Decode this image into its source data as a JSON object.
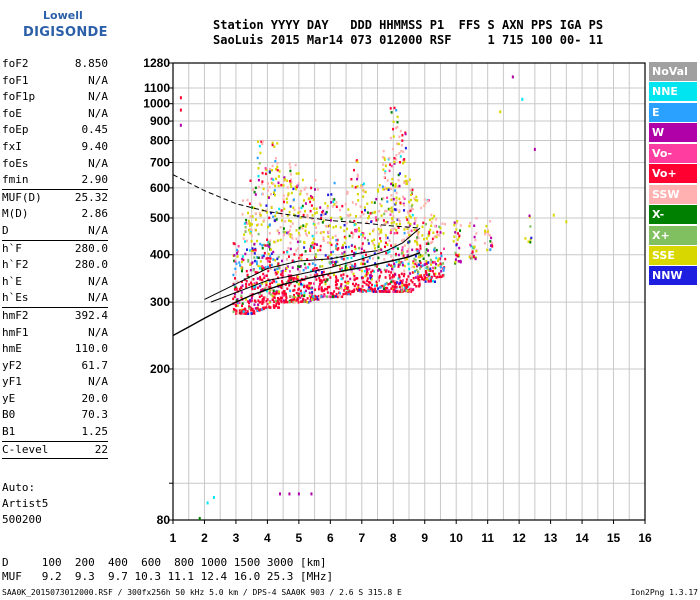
{
  "logo": {
    "line1": "Lowell",
    "line2": "DIGISONDE"
  },
  "header": {
    "line1": "Station YYYY DAY   DDD HHMMSS P1  FFS S AXN PPS IGA PS",
    "line2": "SaoLuis 2015 Mar14 073 012000 RSF     1 715 100 00- 11"
  },
  "params": [
    {
      "label": "foF2",
      "value": "8.850"
    },
    {
      "label": "foF1",
      "value": "N/A"
    },
    {
      "label": "foF1p",
      "value": "N/A"
    },
    {
      "label": "foE",
      "value": "N/A"
    },
    {
      "label": "foEp",
      "value": "0.45"
    },
    {
      "label": "fxI",
      "value": "9.40"
    },
    {
      "label": "foEs",
      "value": "N/A"
    },
    {
      "label": "fmin",
      "value": "2.90"
    },
    {
      "sep": true
    },
    {
      "label": "MUF(D)",
      "value": "25.32"
    },
    {
      "label": "M(D)",
      "value": "2.86"
    },
    {
      "label": "D",
      "value": "N/A"
    },
    {
      "sep": true
    },
    {
      "label": "h`F",
      "value": "280.0"
    },
    {
      "label": "h`F2",
      "value": "280.0"
    },
    {
      "label": "h`E",
      "value": "N/A"
    },
    {
      "label": "h`Es",
      "value": "N/A"
    },
    {
      "sep": true
    },
    {
      "label": "hmF2",
      "value": "392.4"
    },
    {
      "label": "hmF1",
      "value": "N/A"
    },
    {
      "label": "hmE",
      "value": "110.0"
    },
    {
      "label": "yF2",
      "value": "61.7"
    },
    {
      "label": "yF1",
      "value": "N/A"
    },
    {
      "label": "yE",
      "value": "20.0"
    },
    {
      "label": "B0",
      "value": "70.3"
    },
    {
      "label": "B1",
      "value": "1.25"
    },
    {
      "sep": true
    },
    {
      "label": "C-level",
      "value": "22"
    },
    {
      "sep": true
    }
  ],
  "auto": {
    "line1": "Auto:",
    "line2": "Artist5",
    "line3": "500200"
  },
  "legend": [
    {
      "label": "NoVal",
      "color": "#a0a0a0"
    },
    {
      "label": "NNE",
      "color": "#00e5f0"
    },
    {
      "label": "E",
      "color": "#2aa0ff"
    },
    {
      "label": "W",
      "color": "#b000a8"
    },
    {
      "label": "Vo-",
      "color": "#ff3ca0"
    },
    {
      "label": "Vo+",
      "color": "#ff0030"
    },
    {
      "label": "SSW",
      "color": "#ffb0b0"
    },
    {
      "label": "X-",
      "color": "#008000"
    },
    {
      "label": "X+",
      "color": "#80c060"
    },
    {
      "label": "SSE",
      "color": "#d8d800"
    },
    {
      "label": "NNW",
      "color": "#1e1ee0"
    }
  ],
  "muf_table": {
    "line1": "D     100  200  400  600  800 1000 1500 3000 [km]",
    "line2": "MUF   9.2  9.3  9.7 10.3 11.1 12.4 16.0 25.3 [MHz]"
  },
  "footer": {
    "left": "SAA0K_2015073012000.RSF / 300fx256h 50 kHz 5.0 km / DPS-4 SAA0K 903 / 2.6 S 315.8 E",
    "right": "Ion2Png 1.3.17"
  },
  "chart_data": {
    "type": "scatter",
    "title": "",
    "xlabel": "",
    "ylabel": "",
    "xlim": [
      1,
      16
    ],
    "ylim": [
      80,
      1280
    ],
    "y_scale": "log",
    "x_ticks": [
      1,
      2,
      3,
      4,
      5,
      6,
      7,
      8,
      9,
      10,
      11,
      12,
      13,
      14,
      15,
      16
    ],
    "y_ticks": [
      80,
      100,
      200,
      300,
      400,
      500,
      600,
      700,
      800,
      900,
      1000,
      1100,
      1280
    ],
    "y_tick_labels": [
      "80",
      "",
      "200",
      "300",
      "400",
      "500",
      "600",
      "700",
      "800",
      "900",
      "1000",
      "1100",
      "1280"
    ],
    "grid": true,
    "echo_columns": [
      {
        "x": 3.0,
        "ymin": 280,
        "ymax": 430,
        "n": 50
      },
      {
        "x": 3.25,
        "ymin": 280,
        "ymax": 560,
        "n": 70
      },
      {
        "x": 3.5,
        "ymin": 280,
        "ymax": 680,
        "n": 90
      },
      {
        "x": 3.75,
        "ymin": 285,
        "ymax": 800,
        "n": 100
      },
      {
        "x": 4.0,
        "ymin": 290,
        "ymax": 700,
        "n": 90
      },
      {
        "x": 4.25,
        "ymin": 290,
        "ymax": 790,
        "n": 100
      },
      {
        "x": 4.5,
        "ymin": 300,
        "ymax": 640,
        "n": 80
      },
      {
        "x": 4.75,
        "ymin": 300,
        "ymax": 700,
        "n": 80
      },
      {
        "x": 5.0,
        "ymin": 300,
        "ymax": 660,
        "n": 80
      },
      {
        "x": 5.25,
        "ymin": 300,
        "ymax": 620,
        "n": 70
      },
      {
        "x": 5.5,
        "ymin": 305,
        "ymax": 650,
        "n": 70
      },
      {
        "x": 5.75,
        "ymin": 310,
        "ymax": 560,
        "n": 60
      },
      {
        "x": 6.0,
        "ymin": 310,
        "ymax": 620,
        "n": 60
      },
      {
        "x": 6.25,
        "ymin": 310,
        "ymax": 560,
        "n": 55
      },
      {
        "x": 6.5,
        "ymin": 315,
        "ymax": 600,
        "n": 60
      },
      {
        "x": 6.75,
        "ymin": 320,
        "ymax": 720,
        "n": 70
      },
      {
        "x": 7.0,
        "ymin": 320,
        "ymax": 620,
        "n": 65
      },
      {
        "x": 7.25,
        "ymin": 320,
        "ymax": 560,
        "n": 60
      },
      {
        "x": 7.5,
        "ymin": 320,
        "ymax": 620,
        "n": 60
      },
      {
        "x": 7.75,
        "ymin": 320,
        "ymax": 760,
        "n": 80
      },
      {
        "x": 8.0,
        "ymin": 320,
        "ymax": 980,
        "n": 120
      },
      {
        "x": 8.25,
        "ymin": 320,
        "ymax": 850,
        "n": 100
      },
      {
        "x": 8.5,
        "ymin": 320,
        "ymax": 640,
        "n": 80
      },
      {
        "x": 8.75,
        "ymin": 330,
        "ymax": 580,
        "n": 70
      },
      {
        "x": 9.0,
        "ymin": 340,
        "ymax": 560,
        "n": 60
      },
      {
        "x": 9.25,
        "ymin": 340,
        "ymax": 520,
        "n": 50
      },
      {
        "x": 9.5,
        "ymin": 350,
        "ymax": 500,
        "n": 35
      },
      {
        "x": 10.0,
        "ymin": 380,
        "ymax": 500,
        "n": 30
      },
      {
        "x": 10.5,
        "ymin": 390,
        "ymax": 500,
        "n": 30
      },
      {
        "x": 11.0,
        "ymin": 410,
        "ymax": 500,
        "n": 22
      },
      {
        "x": 12.25,
        "ymin": 430,
        "ymax": 510,
        "n": 8
      }
    ],
    "scattered_points": [
      {
        "x": 1.25,
        "y": 1040,
        "color": "#ff0030"
      },
      {
        "x": 1.25,
        "y": 965,
        "color": "#ff0030"
      },
      {
        "x": 1.25,
        "y": 880,
        "color": "#b000a8"
      },
      {
        "x": 11.8,
        "y": 1180,
        "color": "#b000a8"
      },
      {
        "x": 12.1,
        "y": 1030,
        "color": "#00e5f0"
      },
      {
        "x": 11.4,
        "y": 955,
        "color": "#d8d800"
      },
      {
        "x": 12.5,
        "y": 760,
        "color": "#b000a8"
      },
      {
        "x": 2.1,
        "y": 89,
        "color": "#00e5f0"
      },
      {
        "x": 2.3,
        "y": 92,
        "color": "#00e5f0"
      },
      {
        "x": 1.85,
        "y": 81,
        "color": "#008000"
      },
      {
        "x": 4.4,
        "y": 94,
        "color": "#b000a8"
      },
      {
        "x": 4.7,
        "y": 94,
        "color": "#b000a8"
      },
      {
        "x": 5.0,
        "y": 94,
        "color": "#b000a8"
      },
      {
        "x": 5.4,
        "y": 94,
        "color": "#b000a8"
      },
      {
        "x": 13.5,
        "y": 490,
        "color": "#d8d800"
      },
      {
        "x": 13.1,
        "y": 510,
        "color": "#d8d800"
      }
    ],
    "profile_curve": {
      "x": [
        1.0,
        1.5,
        2.0,
        2.5,
        3.0,
        3.5,
        4.0,
        4.5,
        5.0,
        5.5,
        6.0,
        6.5,
        7.0,
        7.5,
        8.0,
        8.5,
        8.85
      ],
      "y": [
        245,
        258,
        272,
        286,
        300,
        313,
        324,
        334,
        342,
        350,
        357,
        364,
        370,
        378,
        386,
        395,
        405
      ]
    },
    "trace_lines": [
      {
        "x": [
          2.0,
          3.0,
          4.0,
          5.0,
          6.0,
          7.0,
          7.5
        ],
        "y": [
          305,
          335,
          368,
          385,
          390,
          405,
          410
        ],
        "style": "solid"
      },
      {
        "x": [
          2.2,
          3.0,
          4.0,
          5.0,
          6.0,
          7.0,
          7.8,
          8.3,
          8.85
        ],
        "y": [
          300,
          318,
          342,
          355,
          370,
          390,
          410,
          430,
          470
        ],
        "style": "solid"
      },
      {
        "x": [
          1.0,
          2.0,
          3.0,
          4.0,
          5.0,
          6.0,
          7.0,
          8.0,
          8.85
        ],
        "y": [
          650,
          590,
          545,
          520,
          505,
          492,
          485,
          476,
          470
        ],
        "style": "dashed"
      }
    ]
  }
}
